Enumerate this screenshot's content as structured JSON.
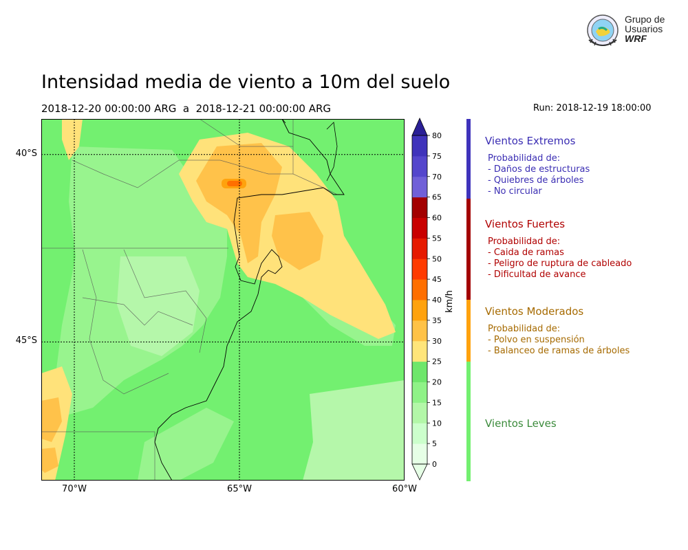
{
  "header": {
    "title": "Intensidad media de viento a 10m del suelo",
    "period": "2018-12-20 00:00:00 ARG  a  2018-12-21 00:00:00 ARG",
    "run": "Run: 2018-12-19 18:00:00"
  },
  "logo": {
    "lines": [
      "Grupo de",
      "Usuarios",
      "WRF"
    ]
  },
  "map": {
    "lat_labels": [
      "40°S",
      "45°S"
    ],
    "lon_labels": [
      "70°W",
      "65°W",
      "60°W"
    ],
    "lat_values": [
      -40,
      -45
    ],
    "lon_values": [
      -70,
      -65,
      -60
    ],
    "extent": {
      "lon": [
        -71,
        -60
      ],
      "lat": [
        -48.7,
        -39.05
      ]
    }
  },
  "colorbar": {
    "unit": "km/h",
    "ticks": [
      "0",
      "5",
      "10",
      "15",
      "20",
      "25",
      "30",
      "35",
      "40",
      "45",
      "50",
      "55",
      "60",
      "65",
      "70",
      "75",
      "80"
    ],
    "colors": [
      "#e6ffe6",
      "#ccffcc",
      "#b3f7a8",
      "#8ff287",
      "#6ee66b",
      "#ffe57a",
      "#ffc247",
      "#ffa20d",
      "#ff6f00",
      "#ff3a00",
      "#e61a00",
      "#c90000",
      "#a30000",
      "#7060d8",
      "#5446cc",
      "#3f33bb",
      "#2a1f96"
    ]
  },
  "categories": [
    {
      "name": "Vientos Extremos",
      "color": "#3a2db3",
      "strip_color": "#3f33bb",
      "heading": "Probabilidad de:",
      "items": [
        "- Daños de estructuras",
        "- Quiebres de árboles",
        "- No circular"
      ]
    },
    {
      "name": "Vientos Fuertes",
      "color": "#b00000",
      "strip_color": "#a30000",
      "heading": "Probabilidad de:",
      "items": [
        "- Caida de ramas",
        "- Peligro de ruptura de cableado",
        "- Dificultad de avance"
      ]
    },
    {
      "name": "Vientos Moderados",
      "color": "#a66a00",
      "strip_color": "#ffa20d",
      "heading": "Probabilidad de:",
      "items": [
        "- Polvo en suspensión",
        "- Balanceo de ramas de árboles"
      ]
    },
    {
      "name": "Vientos Leves",
      "color": "#3a8a3a",
      "strip_color": "#73f070",
      "heading": "",
      "items": []
    }
  ]
}
